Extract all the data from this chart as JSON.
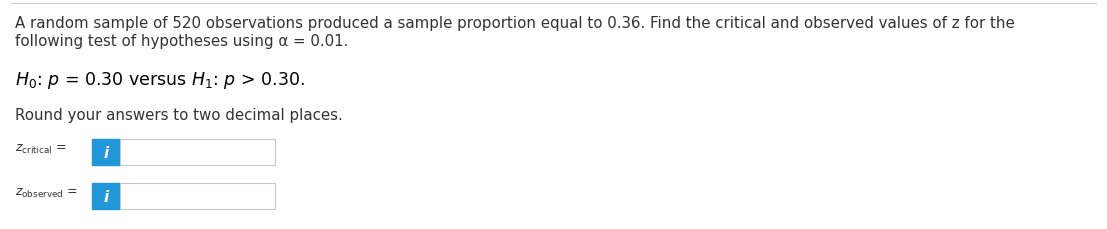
{
  "line1": "A random sample of 520 observations produced a sample proportion equal to 0.36. Find the critical and observed values of z for the",
  "line2": "following test of hypotheses using α = 0.01.",
  "line4": "Round your answers to two decimal places.",
  "bg_color": "#ffffff",
  "text_color": "#333333",
  "hyp_text_color": "#000000",
  "box_color": "#2196d9",
  "input_box_color": "#ffffff",
  "input_box_border": "#c8c8c8",
  "top_border_color": "#cccccc",
  "font_size_main": 10.8,
  "font_size_hyp": 12.5,
  "font_size_label": 9.0,
  "fig_width": 11.07,
  "fig_height": 2.3,
  "dpi": 100
}
